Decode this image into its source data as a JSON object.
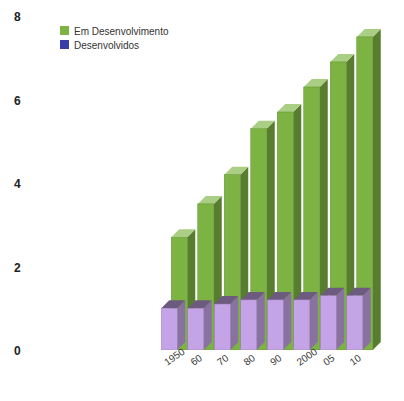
{
  "chart_data": {
    "type": "bar",
    "categories": [
      "1950",
      "60",
      "70",
      "80",
      "90",
      "2000",
      "05",
      "10"
    ],
    "series": [
      {
        "name": "Em Desenvolvimento",
        "color": "#7cb342",
        "values": [
          2.7,
          3.5,
          4.2,
          5.3,
          5.7,
          6.3,
          6.9,
          7.5
        ]
      },
      {
        "name": "Desenvolvidos",
        "color": "#c4a3e6",
        "values": [
          1.0,
          1.0,
          1.1,
          1.2,
          1.2,
          1.2,
          1.3,
          1.3
        ]
      }
    ],
    "ylim": [
      0,
      8
    ],
    "yticks": [
      0,
      2,
      4,
      6,
      8
    ],
    "grid": false,
    "legend": "upper left"
  }
}
